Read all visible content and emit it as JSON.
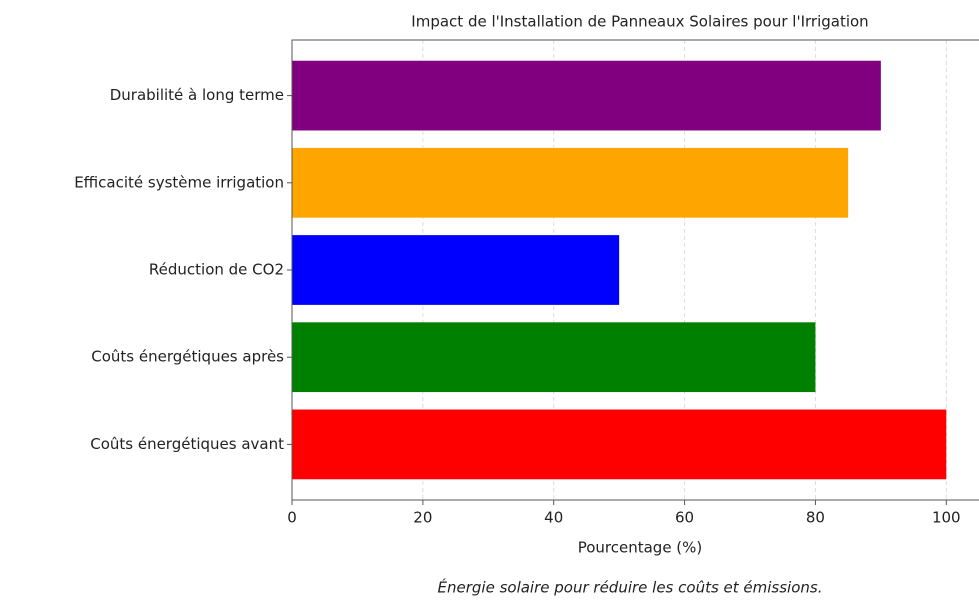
{
  "chart_data": {
    "type": "barh",
    "title": "Impact de l'Installation de Panneaux Solaires pour l'Irrigation",
    "xlabel": "Pourcentage (%)",
    "annotation": "Énergie solaire pour réduire les coûts et émissions.",
    "categories": [
      "Coûts énergétiques avant",
      "Coûts énergétiques après",
      "Réduction de CO2",
      "Efficacité système irrigation",
      "Durabilité à long terme"
    ],
    "values": [
      100,
      80,
      50,
      85,
      90
    ],
    "colors": [
      "#ff0000",
      "#008000",
      "#0000ff",
      "#ffa500",
      "#800080"
    ],
    "xlim": [
      0,
      105
    ],
    "xticks": [
      0,
      20,
      40,
      60,
      80,
      100
    ],
    "grid": true
  }
}
